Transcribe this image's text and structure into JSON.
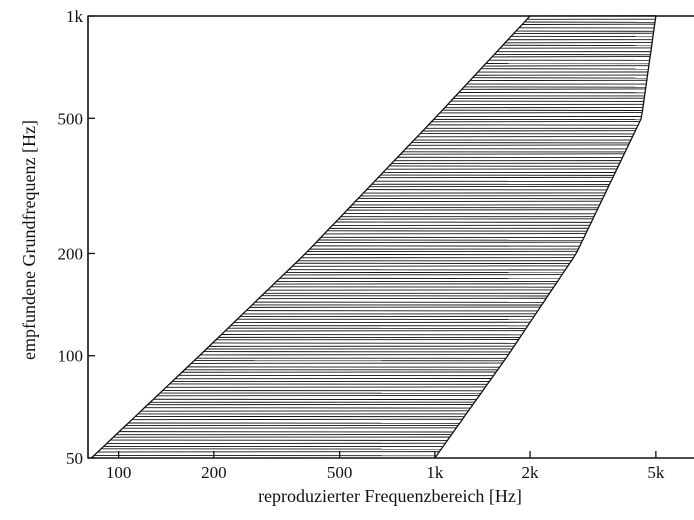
{
  "chart_data": {
    "type": "area",
    "title": "",
    "xlabel": "reproduzierter Frequenzbereich [Hz]",
    "ylabel": "empfundene Grundfrequenz [Hz]",
    "x_scale": "log",
    "y_scale": "log",
    "xlim": [
      80,
      6600
    ],
    "ylim": [
      50,
      1000
    ],
    "xticks": [
      {
        "value": 100,
        "label": "100"
      },
      {
        "value": 200,
        "label": "200"
      },
      {
        "value": 500,
        "label": "500"
      },
      {
        "value": 1000,
        "label": "1k"
      },
      {
        "value": 2000,
        "label": "2k"
      },
      {
        "value": 5000,
        "label": "5k"
      }
    ],
    "yticks": [
      {
        "value": 50,
        "label": "50"
      },
      {
        "value": 100,
        "label": "100"
      },
      {
        "value": 200,
        "label": "200"
      },
      {
        "value": 500,
        "label": "500"
      },
      {
        "value": 1000,
        "label": "1k"
      }
    ],
    "grid": false,
    "legend": "none",
    "fill_style": "horizontal hatching",
    "region": {
      "lower_bound": [
        {
          "f": 50,
          "x": 82
        },
        {
          "f": 100,
          "x": 180
        },
        {
          "f": 200,
          "x": 390
        },
        {
          "f": 500,
          "x": 1000
        },
        {
          "f": 1000,
          "x": 2000
        }
      ],
      "upper_bound": [
        {
          "f": 50,
          "x": 1000
        },
        {
          "f": 100,
          "x": 1700
        },
        {
          "f": 200,
          "x": 2800
        },
        {
          "f": 500,
          "x": 4500
        },
        {
          "f": 1000,
          "x": 5000
        }
      ]
    },
    "colors": {
      "ink": "#111111",
      "background": "#ffffff"
    }
  }
}
